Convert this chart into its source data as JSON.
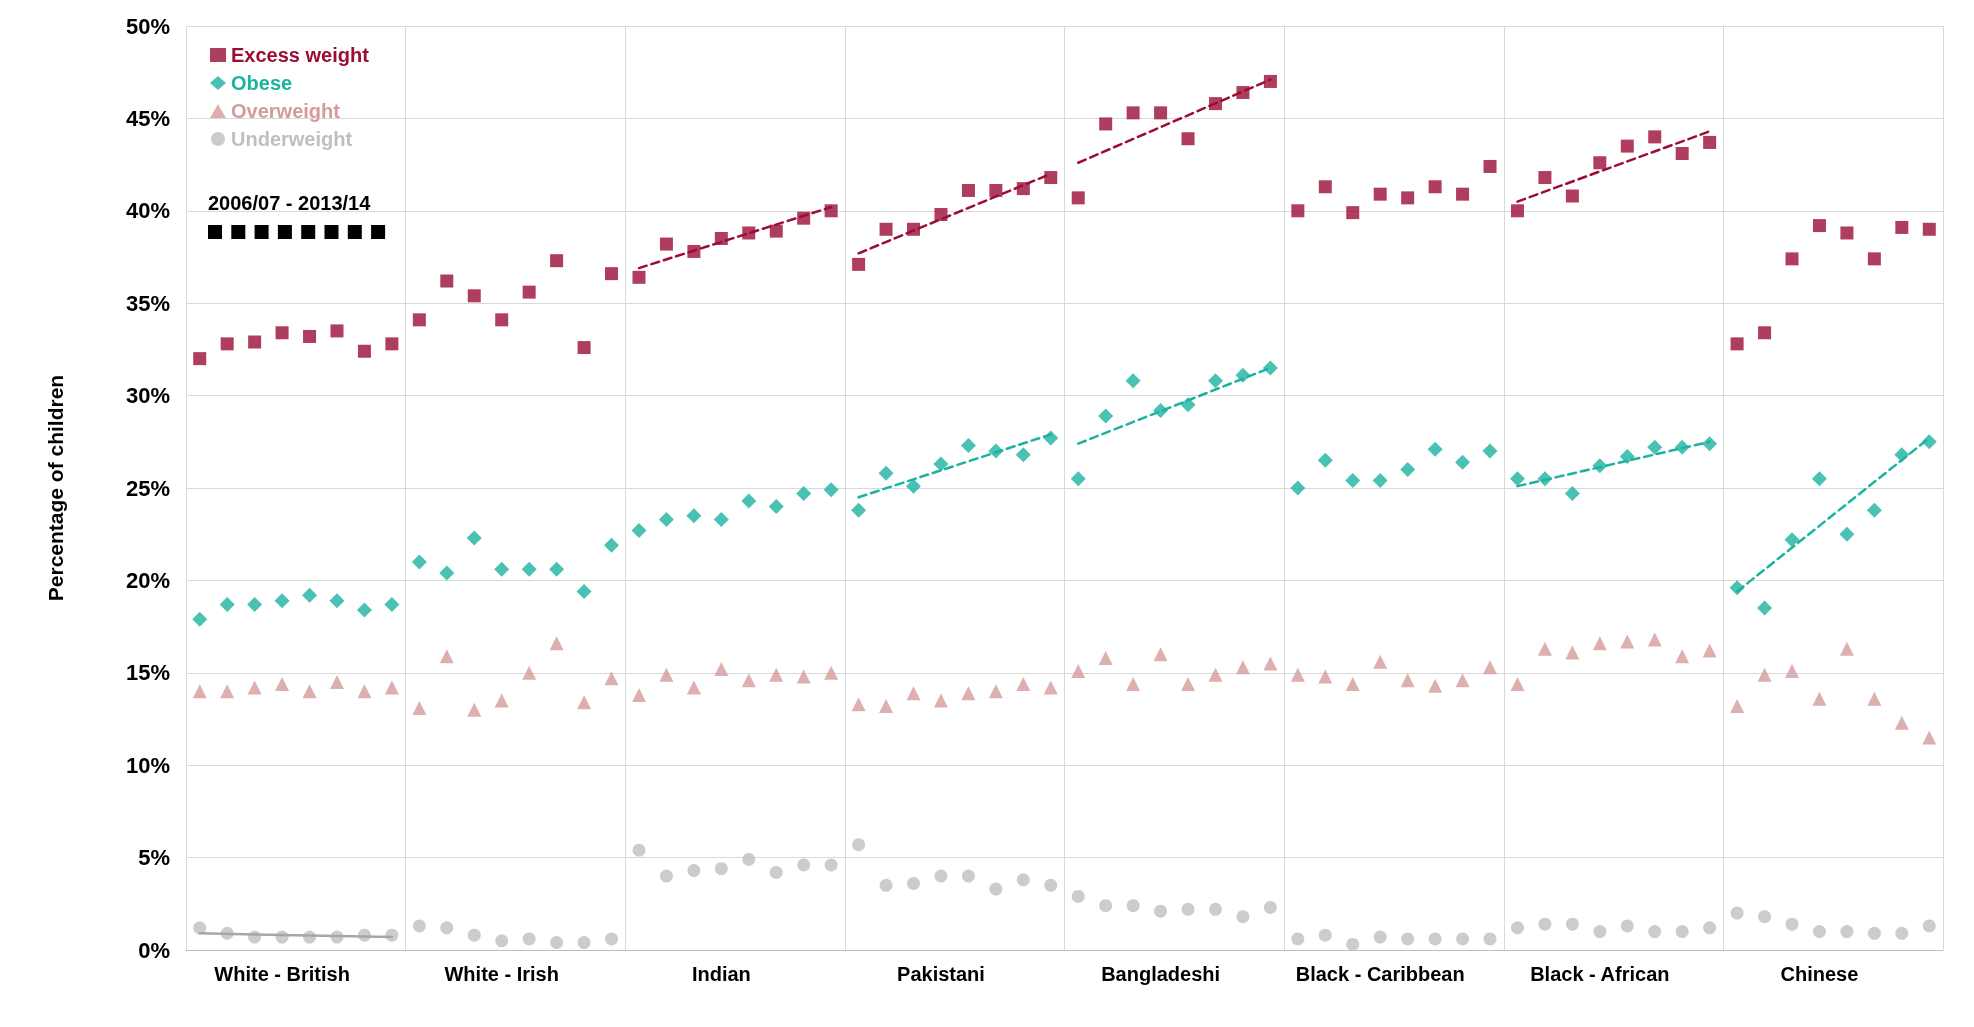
{
  "chart_data": {
    "type": "scatter",
    "ylabel": "Percentage of children",
    "annotations": [
      "2006/07 - 2013/14"
    ],
    "categories": [
      null,
      null,
      null,
      "White - British",
      null,
      null,
      null,
      null,
      null,
      null,
      null,
      "White - Irish",
      null,
      null,
      null,
      null,
      null,
      null,
      null,
      "Indian",
      null,
      null,
      null,
      null,
      null,
      null,
      null,
      "Pakistani",
      null,
      null,
      null,
      null,
      null,
      null,
      null,
      "Bangladeshi",
      null,
      null,
      null,
      null,
      null,
      null,
      null,
      "Black - Caribbean",
      null,
      null,
      null,
      null,
      null,
      null,
      null,
      "Black - African",
      null,
      null,
      null,
      null,
      null,
      null,
      null,
      "Chinese",
      null,
      null,
      null,
      null
    ],
    "ylim": [
      0,
      50
    ],
    "yticks": [
      {
        "value": 0,
        "label": "0%"
      },
      {
        "value": 5,
        "label": "5%"
      },
      {
        "value": 10,
        "label": "10%"
      },
      {
        "value": 15,
        "label": "15%"
      },
      {
        "value": 20,
        "label": "20%"
      },
      {
        "value": 25,
        "label": "25%"
      },
      {
        "value": 30,
        "label": "30%"
      },
      {
        "value": 35,
        "label": "35%"
      },
      {
        "value": 40,
        "label": "40%"
      },
      {
        "value": 45,
        "label": "45%"
      },
      {
        "value": 50,
        "label": "50%"
      }
    ],
    "grid": true,
    "legend": "top left",
    "series": [
      {
        "name": "Excess weight",
        "color": "#9b0d35",
        "marker": "square",
        "values": [
          32.0,
          32.8,
          32.9,
          33.4,
          33.2,
          33.5,
          32.4,
          32.8,
          34.1,
          36.2,
          35.4,
          34.1,
          35.6,
          37.3,
          32.6,
          36.6,
          36.4,
          38.2,
          37.8,
          38.5,
          38.8,
          38.9,
          39.6,
          40.0,
          37.1,
          39.0,
          39.0,
          39.8,
          41.1,
          41.1,
          41.2,
          41.8,
          40.7,
          44.7,
          45.3,
          45.3,
          43.9,
          45.8,
          46.4,
          47.0,
          40.0,
          41.3,
          39.9,
          40.9,
          40.7,
          41.3,
          40.9,
          42.4,
          40.0,
          41.8,
          40.8,
          42.6,
          43.5,
          44.0,
          43.1,
          43.7,
          32.8,
          33.4,
          37.4,
          39.2,
          38.8,
          37.4,
          39.1,
          39.0
        ]
      },
      {
        "name": "Obese",
        "color": "#1bb3a0",
        "marker": "diamond",
        "values": [
          17.9,
          18.7,
          18.7,
          18.9,
          19.2,
          18.9,
          18.4,
          18.7,
          21.0,
          20.4,
          22.3,
          20.6,
          20.6,
          20.6,
          19.4,
          21.9,
          22.7,
          23.3,
          23.5,
          23.3,
          24.3,
          24.0,
          24.7,
          24.9,
          23.8,
          25.8,
          25.1,
          26.3,
          27.3,
          27.0,
          26.8,
          27.7,
          25.5,
          28.9,
          30.8,
          29.2,
          29.5,
          30.8,
          31.1,
          31.5,
          25.0,
          26.5,
          25.4,
          25.4,
          26.0,
          27.1,
          26.4,
          27.0,
          25.5,
          25.5,
          24.7,
          26.2,
          26.7,
          27.2,
          27.2,
          27.4,
          19.6,
          18.5,
          22.2,
          25.5,
          22.5,
          23.8,
          26.8,
          27.5
        ]
      },
      {
        "name": "Overweight",
        "color": "#d49b9b",
        "marker": "triangle",
        "values": [
          14.0,
          14.0,
          14.2,
          14.4,
          14.0,
          14.5,
          14.0,
          14.2,
          13.1,
          15.9,
          13.0,
          13.5,
          15.0,
          16.6,
          13.4,
          14.7,
          13.8,
          14.9,
          14.2,
          15.2,
          14.6,
          14.9,
          14.8,
          15.0,
          13.3,
          13.2,
          13.9,
          13.5,
          13.9,
          14.0,
          14.4,
          14.2,
          15.1,
          15.8,
          14.4,
          16.0,
          14.4,
          14.9,
          15.3,
          15.5,
          14.9,
          14.8,
          14.4,
          15.6,
          14.6,
          14.3,
          14.6,
          15.3,
          14.4,
          16.3,
          16.1,
          16.6,
          16.7,
          16.8,
          15.9,
          16.2,
          13.2,
          14.9,
          15.1,
          13.6,
          16.3,
          13.6,
          12.3,
          11.5
        ]
      },
      {
        "name": "Underweight",
        "color": "#bfbfbf",
        "marker": "circle",
        "values": [
          1.2,
          0.9,
          0.7,
          0.7,
          0.7,
          0.7,
          0.8,
          0.8,
          1.3,
          1.2,
          0.8,
          0.5,
          0.6,
          0.4,
          0.4,
          0.6,
          5.4,
          4.0,
          4.3,
          4.4,
          4.9,
          4.2,
          4.6,
          4.6,
          5.7,
          3.5,
          3.6,
          4.0,
          4.0,
          3.3,
          3.8,
          3.5,
          2.9,
          2.4,
          2.4,
          2.1,
          2.2,
          2.2,
          1.8,
          2.3,
          0.6,
          0.8,
          0.3,
          0.7,
          0.6,
          0.6,
          0.6,
          0.6,
          1.2,
          1.4,
          1.4,
          1.0,
          1.3,
          1.0,
          1.0,
          1.2,
          2.0,
          1.8,
          1.4,
          1.0,
          1.0,
          0.9,
          0.9,
          1.3
        ]
      },
      {
        "type": "line",
        "color": "#9b0d35",
        "line_style": "dashed",
        "marker": "none",
        "values": [
          null,
          null,
          null,
          null,
          null,
          null,
          null,
          null,
          null,
          null,
          null,
          null,
          null,
          null,
          null,
          null,
          36.9,
          null,
          null,
          null,
          null,
          null,
          null,
          40.2,
          null,
          null,
          null,
          null,
          null,
          null,
          null,
          null,
          null,
          null,
          null,
          null,
          null,
          null,
          null,
          null,
          null,
          null,
          null,
          null,
          null,
          null,
          null,
          null,
          null,
          null,
          null,
          null,
          null,
          null,
          null,
          null,
          null,
          null,
          null,
          null,
          null,
          null,
          null,
          null
        ]
      },
      {
        "type": "line",
        "color": "#9b0d35",
        "line_style": "dashed",
        "marker": "none",
        "values": [
          null,
          null,
          null,
          null,
          null,
          null,
          null,
          null,
          null,
          null,
          null,
          null,
          null,
          null,
          null,
          null,
          null,
          null,
          null,
          null,
          null,
          null,
          null,
          null,
          37.7,
          null,
          null,
          null,
          null,
          null,
          null,
          42.0,
          null,
          null,
          null,
          null,
          null,
          null,
          null,
          null,
          null,
          null,
          null,
          null,
          null,
          null,
          null,
          null,
          null,
          null,
          null,
          null,
          null,
          null,
          null,
          null,
          null,
          null,
          null,
          null,
          null,
          null,
          null,
          null
        ]
      },
      {
        "type": "line",
        "color": "#9b0d35",
        "line_style": "dashed",
        "marker": "none",
        "values": [
          null,
          null,
          null,
          null,
          null,
          null,
          null,
          null,
          null,
          null,
          null,
          null,
          null,
          null,
          null,
          null,
          null,
          null,
          null,
          null,
          null,
          null,
          null,
          null,
          null,
          null,
          null,
          null,
          null,
          null,
          null,
          null,
          42.6,
          null,
          null,
          null,
          null,
          null,
          null,
          47.1,
          null,
          null,
          null,
          null,
          null,
          null,
          null,
          null,
          null,
          null,
          null,
          null,
          null,
          null,
          null,
          null,
          null,
          null,
          null,
          null,
          null,
          null,
          null,
          null
        ]
      },
      {
        "type": "line",
        "color": "#9b0d35",
        "line_style": "dashed",
        "marker": "none",
        "values": [
          null,
          null,
          null,
          null,
          null,
          null,
          null,
          null,
          null,
          null,
          null,
          null,
          null,
          null,
          null,
          null,
          null,
          null,
          null,
          null,
          null,
          null,
          null,
          null,
          null,
          null,
          null,
          null,
          null,
          null,
          null,
          null,
          null,
          null,
          null,
          null,
          null,
          null,
          null,
          null,
          null,
          null,
          null,
          null,
          null,
          null,
          null,
          null,
          40.5,
          null,
          null,
          null,
          null,
          null,
          null,
          44.3,
          null,
          null,
          null,
          null,
          null,
          null,
          null,
          null
        ]
      },
      {
        "type": "line",
        "color": "#1bb3a0",
        "line_style": "dashed",
        "marker": "none",
        "values": [
          null,
          null,
          null,
          null,
          null,
          null,
          null,
          null,
          null,
          null,
          null,
          null,
          null,
          null,
          null,
          null,
          null,
          null,
          null,
          null,
          null,
          null,
          null,
          null,
          24.5,
          null,
          null,
          null,
          null,
          null,
          null,
          27.9,
          null,
          null,
          null,
          null,
          null,
          null,
          null,
          null,
          null,
          null,
          null,
          null,
          null,
          null,
          null,
          null,
          null,
          null,
          null,
          null,
          null,
          null,
          null,
          null,
          null,
          null,
          null,
          null,
          null,
          null,
          null,
          null
        ]
      },
      {
        "type": "line",
        "color": "#1bb3a0",
        "line_style": "dashed",
        "marker": "none",
        "values": [
          null,
          null,
          null,
          null,
          null,
          null,
          null,
          null,
          null,
          null,
          null,
          null,
          null,
          null,
          null,
          null,
          null,
          null,
          null,
          null,
          null,
          null,
          null,
          null,
          null,
          null,
          null,
          null,
          null,
          null,
          null,
          null,
          27.4,
          null,
          null,
          null,
          null,
          null,
          null,
          31.5,
          null,
          null,
          null,
          null,
          null,
          null,
          null,
          null,
          null,
          null,
          null,
          null,
          null,
          null,
          null,
          null,
          null,
          null,
          null,
          null,
          null,
          null,
          null,
          null
        ]
      },
      {
        "type": "line",
        "color": "#1bb3a0",
        "line_style": "dashed",
        "marker": "none",
        "values": [
          null,
          null,
          null,
          null,
          null,
          null,
          null,
          null,
          null,
          null,
          null,
          null,
          null,
          null,
          null,
          null,
          null,
          null,
          null,
          null,
          null,
          null,
          null,
          null,
          null,
          null,
          null,
          null,
          null,
          null,
          null,
          null,
          null,
          null,
          null,
          null,
          null,
          null,
          null,
          null,
          null,
          null,
          null,
          null,
          null,
          null,
          null,
          null,
          25.1,
          null,
          null,
          null,
          null,
          null,
          null,
          27.5,
          null,
          null,
          null,
          null,
          null,
          null,
          null,
          null
        ]
      },
      {
        "type": "line",
        "color": "#1bb3a0",
        "line_style": "dashed",
        "marker": "none",
        "values": [
          null,
          null,
          null,
          null,
          null,
          null,
          null,
          null,
          null,
          null,
          null,
          null,
          null,
          null,
          null,
          null,
          null,
          null,
          null,
          null,
          null,
          null,
          null,
          null,
          null,
          null,
          null,
          null,
          null,
          null,
          null,
          null,
          null,
          null,
          null,
          null,
          null,
          null,
          null,
          null,
          null,
          null,
          null,
          null,
          null,
          null,
          null,
          null,
          null,
          null,
          null,
          null,
          null,
          null,
          null,
          null,
          19.4,
          null,
          null,
          null,
          null,
          null,
          null,
          27.7
        ]
      },
      {
        "type": "line",
        "color": "#a6a6a6",
        "line_style": "solid",
        "marker": "none",
        "values": [
          0.9,
          null,
          null,
          null,
          null,
          null,
          null,
          0.7,
          null,
          null,
          null,
          null,
          null,
          null,
          null,
          null,
          null,
          null,
          null,
          null,
          null,
          null,
          null,
          null,
          null,
          null,
          null,
          null,
          null,
          null,
          null,
          null,
          null,
          null,
          null,
          null,
          null,
          null,
          null,
          null,
          null,
          null,
          null,
          null,
          null,
          null,
          null,
          null,
          null,
          null,
          null,
          null,
          null,
          null,
          null,
          null,
          null,
          null,
          null,
          null,
          null,
          null,
          null,
          null
        ]
      }
    ]
  }
}
